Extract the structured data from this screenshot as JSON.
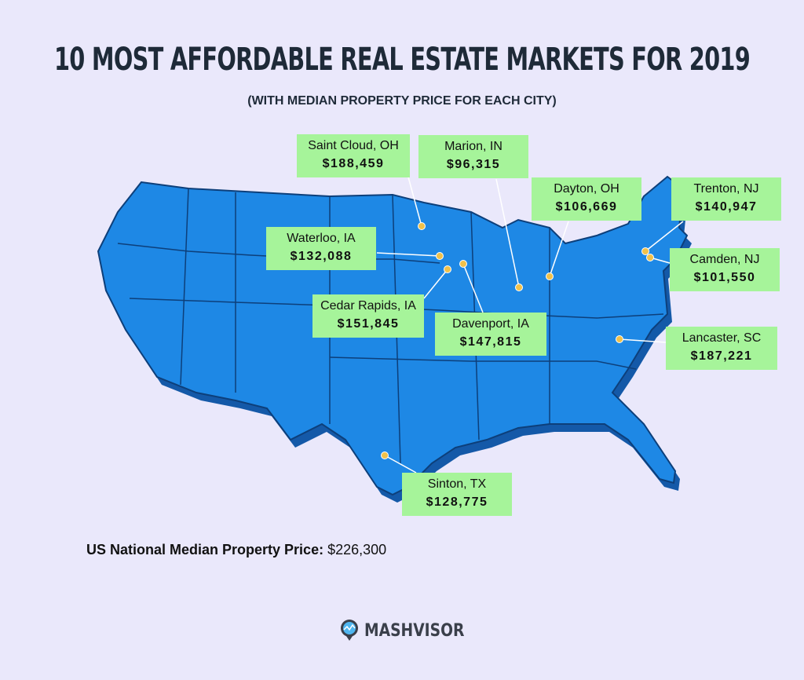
{
  "title": "10 MOST AFFORDABLE REAL ESTATE MARKETS FOR 2019",
  "subtitle": "(WITH MEDIAN PROPERTY PRICE FOR EACH CITY)",
  "colors": {
    "map": "#1e88e5",
    "label_bg": "#a6f49a",
    "dot": "#f0c14b",
    "title": "#1e2a38"
  },
  "cities": [
    {
      "name": "Saint Cloud, OH",
      "price": "$188,459"
    },
    {
      "name": "Marion, IN",
      "price": "$96,315"
    },
    {
      "name": "Dayton, OH",
      "price": "$106,669"
    },
    {
      "name": "Trenton, NJ",
      "price": "$140,947"
    },
    {
      "name": "Camden, NJ",
      "price": "$101,550"
    },
    {
      "name": "Waterloo, IA",
      "price": "$132,088"
    },
    {
      "name": "Cedar Rapids, IA",
      "price": "$151,845"
    },
    {
      "name": "Davenport, IA",
      "price": "$147,815"
    },
    {
      "name": "Lancaster, SC",
      "price": "$187,221"
    },
    {
      "name": "Sinton, TX",
      "price": "$128,775"
    }
  ],
  "national": {
    "label": "US National Median Property Price:",
    "value": "$226,300"
  },
  "logo": {
    "text": "MASHVISOR",
    "icon": "map-pin-chart-icon"
  }
}
